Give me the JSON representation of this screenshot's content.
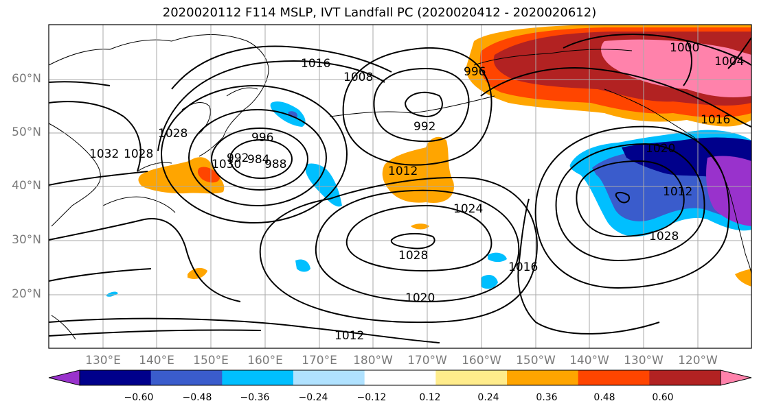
{
  "title": "2020020112 F114 MSLP, IVT Landfall PC (2020020412 - 2020020612)",
  "lat_labels": [
    "60°N",
    "50°N",
    "40°N",
    "30°N",
    "20°N"
  ],
  "lon_labels": [
    "130°E",
    "140°E",
    "150°E",
    "160°E",
    "170°E",
    "180°W",
    "170°W",
    "160°W",
    "150°W",
    "140°W",
    "130°W",
    "120°W"
  ],
  "contour_labels": [
    "1016",
    "1008",
    "996",
    "992",
    "984",
    "988",
    "996",
    "1030",
    "1028",
    "1028",
    "1032",
    "1012",
    "992",
    "1024",
    "1028",
    "1020",
    "1012",
    "1016",
    "1020",
    "1012",
    "1028",
    "1004",
    "1000",
    "1016"
  ],
  "colorbar": {
    "ticks": [
      "−0.60",
      "−0.48",
      "−0.36",
      "−0.24",
      "−0.12",
      "0.12",
      "0.24",
      "0.36",
      "0.48",
      "0.60"
    ],
    "colors": [
      "#9932cc",
      "#00008b",
      "#3a5ccc",
      "#00bfff",
      "#b0e2ff",
      "#ffffff",
      "#ffec8b",
      "#ffa500",
      "#ff4500",
      "#b22222",
      "#ff82ab"
    ]
  }
}
